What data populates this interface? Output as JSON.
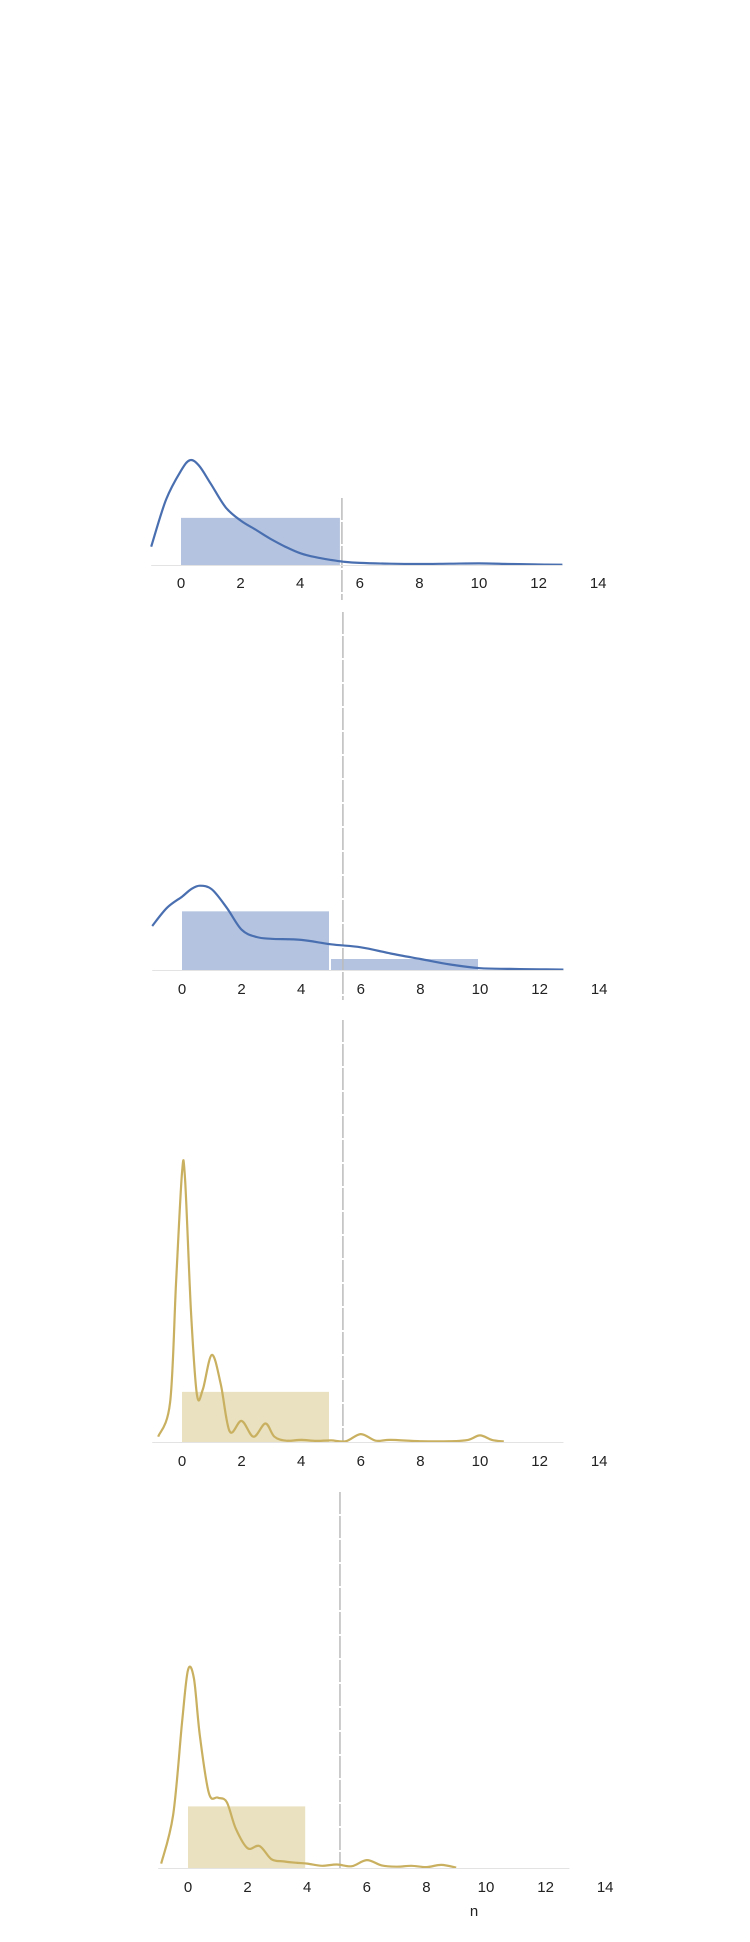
{
  "colors": {
    "blue": "#4a6fb0",
    "blue_fill": "#b4c4e0",
    "gold": "#c9b060",
    "gold_fill": "#e9e1bf",
    "ref_line": "#bbbbbb"
  },
  "chart_data": [
    {
      "type": "area",
      "color": "blue",
      "xlim": [
        -1,
        14
      ],
      "x_ticks": [
        0,
        2,
        4,
        6,
        8,
        10,
        12,
        14
      ],
      "grid": false,
      "reference_line_x": 5.4,
      "histogram": [
        {
          "x0": 0,
          "x1": 5.4,
          "density": 0.18
        }
      ],
      "density_curve": {
        "x": [
          -1,
          -0.5,
          0,
          0.3,
          0.6,
          1,
          1.5,
          2,
          2.5,
          3,
          3.5,
          4,
          4.5,
          5,
          5.5,
          6,
          7,
          8,
          9,
          10,
          11,
          12,
          12.8
        ],
        "y": [
          0.07,
          0.25,
          0.36,
          0.4,
          0.38,
          0.31,
          0.22,
          0.17,
          0.135,
          0.1,
          0.07,
          0.045,
          0.03,
          0.02,
          0.012,
          0.008,
          0.005,
          0.004,
          0.005,
          0.006,
          0.004,
          0.002,
          0.001
        ]
      }
    },
    {
      "type": "area",
      "color": "blue",
      "xlim": [
        -1,
        14
      ],
      "x_ticks": [
        0,
        2,
        4,
        6,
        8,
        10,
        12,
        14
      ],
      "grid": false,
      "reference_line_x": 5.4,
      "histogram": [
        {
          "x0": 0,
          "x1": 5,
          "density": 0.16
        },
        {
          "x0": 5,
          "x1": 10,
          "density": 0.03
        }
      ],
      "density_curve": {
        "x": [
          -1,
          -0.5,
          0,
          0.3,
          0.6,
          1,
          1.5,
          2,
          2.5,
          3,
          4,
          5,
          6,
          7,
          8,
          9,
          10,
          11,
          12,
          12.8
        ],
        "y": [
          0.12,
          0.17,
          0.2,
          0.22,
          0.23,
          0.22,
          0.17,
          0.11,
          0.09,
          0.085,
          0.082,
          0.07,
          0.062,
          0.045,
          0.03,
          0.015,
          0.005,
          0.003,
          0.002,
          0.001
        ]
      }
    },
    {
      "type": "area",
      "color": "gold",
      "xlim": [
        -1,
        14
      ],
      "x_ticks": [
        0,
        2,
        4,
        6,
        8,
        10,
        12,
        14
      ],
      "grid": false,
      "reference_line_x": 5.4,
      "histogram": [
        {
          "x0": 0,
          "x1": 5,
          "density": 0.19
        }
      ],
      "density_curve": {
        "x": [
          -0.8,
          -0.4,
          -0.2,
          0,
          0.1,
          0.3,
          0.5,
          0.7,
          1.0,
          1.3,
          1.6,
          2.0,
          2.4,
          2.8,
          3.1,
          3.5,
          4.0,
          4.5,
          5.0,
          5.5,
          6.0,
          6.5,
          7.0,
          8.0,
          9.0,
          9.6,
          10.0,
          10.4,
          10.8
        ],
        "y": [
          0.02,
          0.15,
          0.6,
          1.02,
          1.0,
          0.5,
          0.18,
          0.2,
          0.33,
          0.22,
          0.04,
          0.08,
          0.02,
          0.07,
          0.02,
          0.005,
          0.008,
          0.004,
          0.006,
          0.003,
          0.03,
          0.005,
          0.008,
          0.003,
          0.003,
          0.008,
          0.025,
          0.008,
          0.002
        ]
      }
    },
    {
      "type": "area",
      "color": "gold",
      "xlim": [
        -1,
        14
      ],
      "x_ticks": [
        0,
        2,
        4,
        6,
        8,
        10,
        12,
        14
      ],
      "grid": false,
      "reference_line_x": 5.1,
      "x_annotation": "n",
      "histogram": [
        {
          "x0": 0,
          "x1": 4,
          "density": 0.14
        }
      ],
      "density_curve": {
        "x": [
          -0.9,
          -0.5,
          -0.2,
          0,
          0.2,
          0.4,
          0.7,
          1.0,
          1.3,
          1.6,
          2.0,
          2.4,
          2.8,
          3.2,
          3.6,
          4.0,
          4.5,
          5.0,
          5.5,
          6.0,
          6.5,
          7.0,
          7.5,
          8.0,
          8.5,
          9.0
        ],
        "y": [
          0.01,
          0.12,
          0.33,
          0.45,
          0.43,
          0.3,
          0.17,
          0.16,
          0.15,
          0.09,
          0.045,
          0.05,
          0.02,
          0.015,
          0.012,
          0.01,
          0.005,
          0.008,
          0.004,
          0.018,
          0.006,
          0.003,
          0.005,
          0.002,
          0.007,
          0.001
        ]
      }
    }
  ]
}
